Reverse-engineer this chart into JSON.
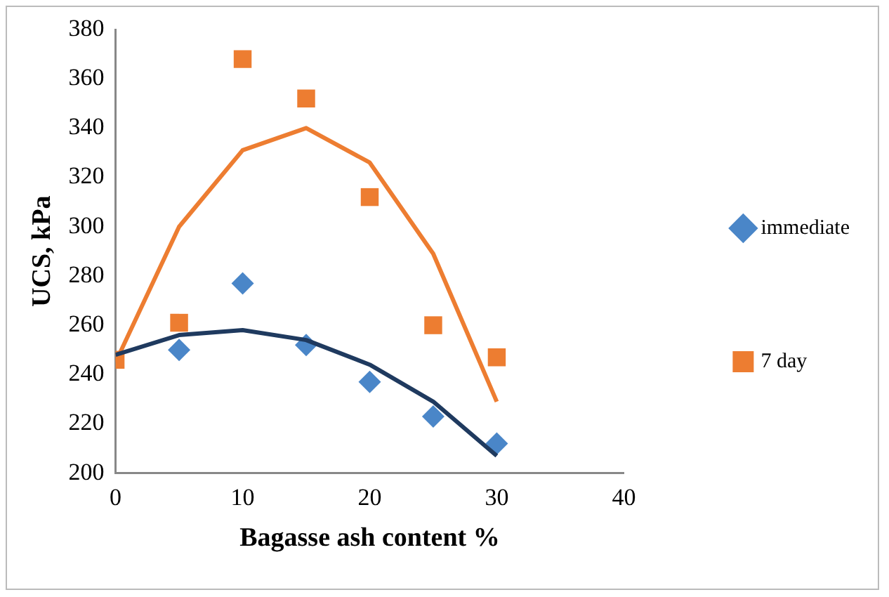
{
  "chart_data": {
    "type": "scatter",
    "xlabel": "Bagasse ash content %",
    "ylabel": "UCS, kPa",
    "xlim": [
      0,
      40
    ],
    "xticks": [
      0,
      10,
      20,
      30,
      40
    ],
    "ylim": [
      200,
      380
    ],
    "yticks": [
      200,
      220,
      240,
      260,
      280,
      300,
      320,
      340,
      360,
      380
    ],
    "grid": false,
    "legend": "right",
    "series": [
      {
        "name": "immediate",
        "color": "#4a86c8",
        "marker": "diamond",
        "x": [
          5,
          10,
          15,
          20,
          25,
          30
        ],
        "values": [
          250,
          277,
          252,
          237,
          223,
          212
        ]
      },
      {
        "name": "7 day",
        "color": "#ed7d31",
        "marker": "square",
        "x": [
          0,
          5,
          10,
          15,
          20,
          25,
          30
        ],
        "values": [
          246,
          261,
          368,
          352,
          312,
          260,
          247
        ]
      },
      {
        "type": "line",
        "color": "#1f3a5f",
        "marker": "none",
        "x": [
          0,
          5,
          10,
          15,
          20,
          25,
          30
        ],
        "values": [
          248,
          256,
          258,
          254,
          244,
          229,
          207
        ]
      },
      {
        "type": "line",
        "color": "#ed7d31",
        "marker": "none",
        "x": [
          0,
          5,
          10,
          15,
          20,
          25,
          30
        ],
        "values": [
          245,
          300,
          331,
          340,
          326,
          289,
          229
        ]
      }
    ]
  }
}
